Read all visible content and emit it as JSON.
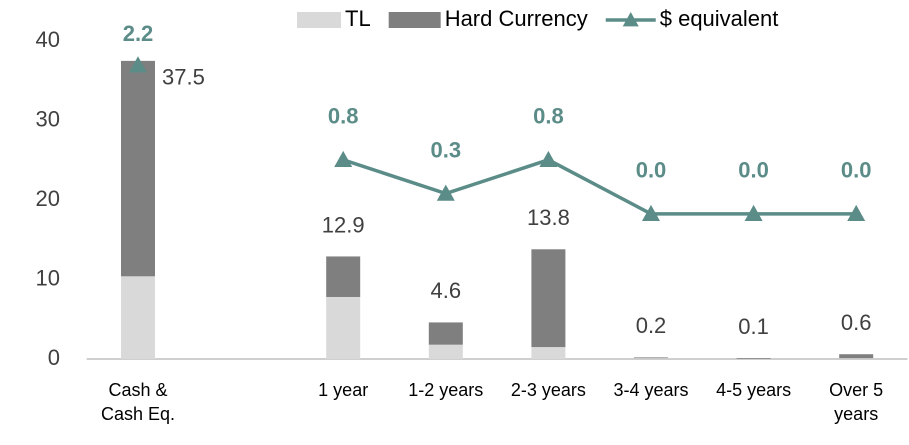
{
  "chart_data": {
    "type": "stacked_bar_line",
    "categories": [
      "Cash & Cash Eq.",
      null,
      "1 year",
      "1-2 years",
      "2-3 years",
      "3-4 years",
      "4-5 years",
      "Over 5 years"
    ],
    "series": [
      {
        "name": "TL",
        "color": "#d9d9d9",
        "values": [
          10.4,
          null,
          7.8,
          1.8,
          1.5,
          0.1,
          0.0,
          0.1
        ]
      },
      {
        "name": "Hard Currency",
        "color": "#7f7f7f",
        "values": [
          27.1,
          null,
          5.1,
          2.8,
          12.3,
          0.1,
          0.1,
          0.5
        ]
      },
      {
        "name": "$ equivalent",
        "color": "#5b8c88",
        "axis": "y2",
        "type": "line",
        "values": [
          2.2,
          null,
          0.8,
          0.3,
          0.8,
          0.0,
          0.0,
          0.0
        ],
        "value_labels": [
          "2.2",
          null,
          "0.8",
          "0.3",
          "0.8",
          "0.0",
          "0.0",
          "0.0"
        ]
      }
    ],
    "totals": [
      37.5,
      null,
      12.9,
      4.6,
      13.8,
      0.2,
      0.1,
      0.6
    ],
    "ylim": [
      0,
      40
    ],
    "yticks": [
      0,
      10,
      20,
      30,
      40
    ],
    "y2lim": [
      -2.15,
      2.56
    ],
    "grid": false,
    "legend": "top"
  }
}
